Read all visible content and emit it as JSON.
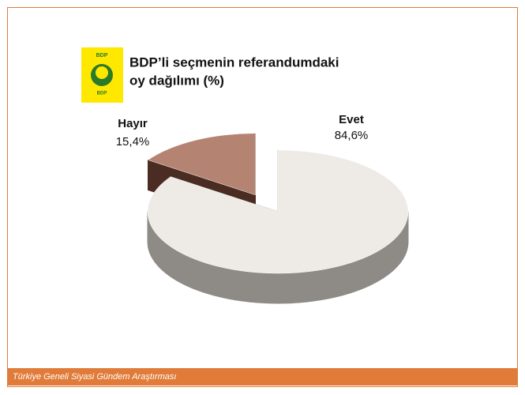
{
  "logo": {
    "top": "BDP",
    "bottom": "BDP"
  },
  "footer": "Türkiye Geneli Siyasi Gündem Araştırması",
  "chart_data": {
    "type": "pie",
    "title_lines": [
      "BDP’li seçmenin referandumdaki",
      "oy dağılımı (%)"
    ],
    "categories": [
      "Evet",
      "Hayır"
    ],
    "values": [
      84.6,
      15.4
    ],
    "value_labels": [
      "84,6%",
      "15,4%"
    ],
    "colors": [
      "#eeebe6",
      "#b58372"
    ],
    "side_colors": [
      "#8e8b86",
      "#4b2c22"
    ],
    "exploded": [
      false,
      true
    ]
  }
}
